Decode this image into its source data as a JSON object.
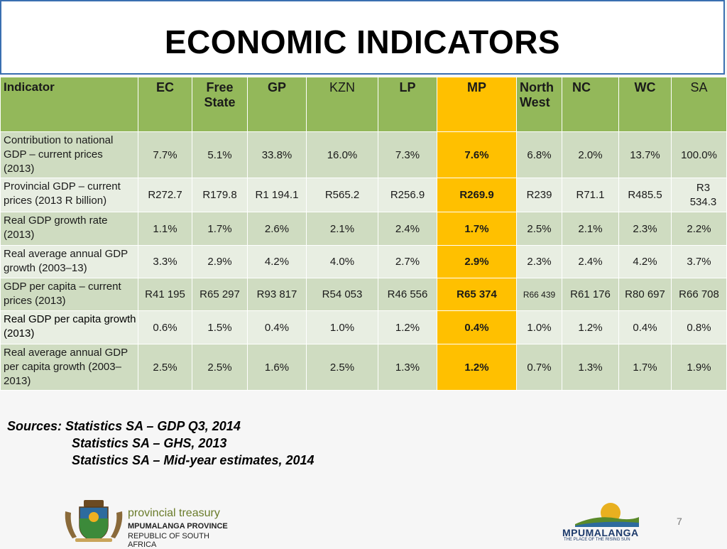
{
  "title": "ECONOMIC INDICATORS",
  "table": {
    "headers": [
      {
        "l1": "Indicator",
        "l2": ""
      },
      {
        "l1": "EC",
        "l2": ""
      },
      {
        "l1": "Free",
        "l2": "State"
      },
      {
        "l1": "GP",
        "l2": ""
      },
      {
        "l1": "KZN",
        "l2": ""
      },
      {
        "l1": "LP",
        "l2": ""
      },
      {
        "l1": "MP",
        "l2": ""
      },
      {
        "l1": "North",
        "l2": "West"
      },
      {
        "l1": "NC",
        "l2": ""
      },
      {
        "l1": "WC",
        "l2": ""
      },
      {
        "l1": "SA",
        "l2": ""
      }
    ],
    "rows": [
      {
        "indicator": "Contribution to national GDP – current prices (2013)",
        "values": [
          "7.7%",
          "5.1%",
          "33.8%",
          "16.0%",
          "7.3%",
          "7.6%",
          "6.8%",
          "2.0%",
          "13.7%",
          "100.0%"
        ]
      },
      {
        "indicator": "Provincial GDP – current prices (2013 R billion)",
        "values": [
          "R272.7",
          "R179.8",
          "R1 194.1",
          "R565.2",
          "R256.9",
          "R269.9",
          "R239",
          "R71.1",
          "R485.5",
          "R3 534.3"
        ]
      },
      {
        "indicator": "Real GDP growth rate (2013)",
        "values": [
          "1.1%",
          "1.7%",
          "2.6%",
          "2.1%",
          "2.4%",
          "1.7%",
          "2.5%",
          "2.1%",
          "2.3%",
          "2.2%"
        ]
      },
      {
        "indicator": "Real average annual GDP growth (2003–13)",
        "values": [
          "3.3%",
          "2.9%",
          "4.2%",
          "4.0%",
          "2.7%",
          "2.9%",
          "2.3%",
          "2.4%",
          "4.2%",
          "3.7%"
        ]
      },
      {
        "indicator": "GDP per capita – current prices (2013)",
        "values": [
          "R41 195",
          "R65 297",
          "R93 817",
          "R54 053",
          "R46 556",
          "R65 374",
          "R66 439",
          "R61 176",
          "R80 697",
          "R66 708"
        ]
      },
      {
        "indicator": "Real GDP per capita growth (2013)",
        "values": [
          "0.6%",
          "1.5%",
          "0.4%",
          "1.0%",
          "1.2%",
          "0.4%",
          "1.0%",
          "1.2%",
          "0.4%",
          "0.8%"
        ]
      },
      {
        "indicator": "Real average annual GDP per capita growth (2003–2013)",
        "values": [
          "2.5%",
          "2.5%",
          "1.6%",
          "2.5%",
          "1.3%",
          "1.2%",
          "0.7%",
          "1.3%",
          "1.7%",
          "1.9%"
        ]
      }
    ]
  },
  "sources": {
    "label": "Sources:",
    "lines": [
      "Statistics SA – GDP Q3, 2014",
      "Statistics SA – GHS, 2013",
      "Statistics SA – Mid-year estimates, 2014"
    ]
  },
  "logo_left": {
    "name": "provincial treasury",
    "province": "MPUMALANGA PROVINCE",
    "republic": "REPUBLIC OF SOUTH AFRICA"
  },
  "logo_right": {
    "name": "MPUMALANGA",
    "tagline": "THE PLACE OF THE RISING SUN"
  },
  "page_number": "7",
  "colors": {
    "header_green": "#93b85a",
    "highlight": "#ffc000",
    "row_dark": "#cfdcc1",
    "row_light": "#e8eee2",
    "title_border": "#3a6fb0"
  }
}
